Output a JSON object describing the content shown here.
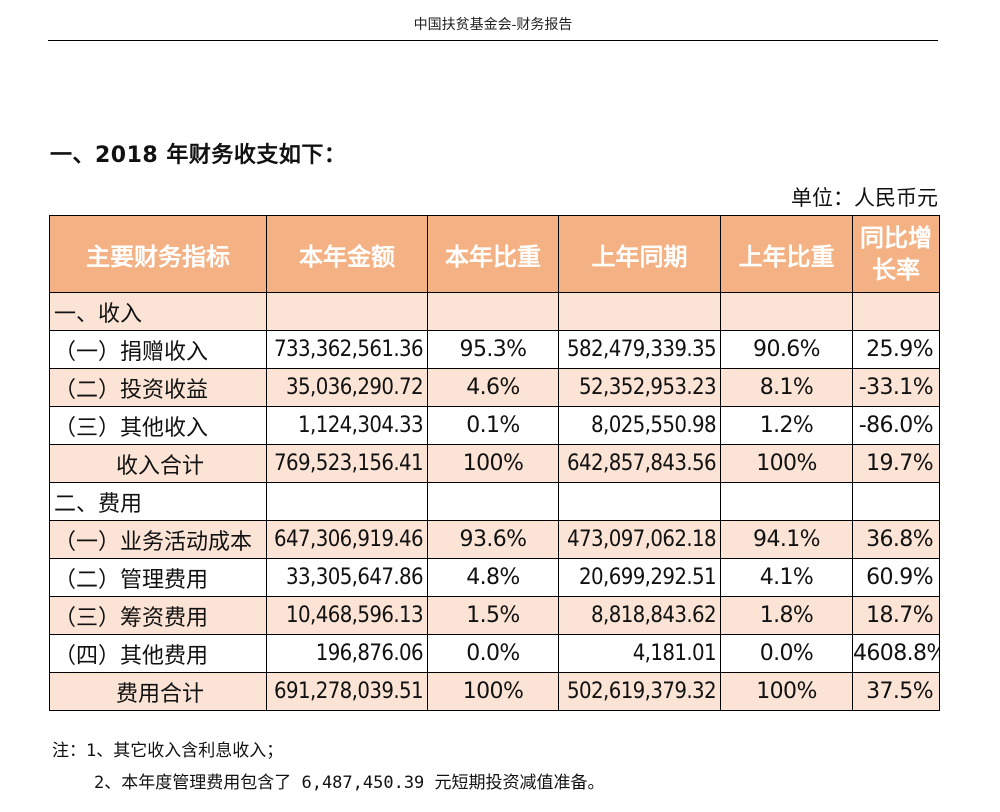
{
  "header": {
    "title": "中国扶贫基金会-财务报告"
  },
  "section": {
    "title": "一、2018 年财务收支如下：",
    "unit": "单位：人民币元"
  },
  "table": {
    "columns": [
      "主要财务指标",
      "本年金额",
      "本年比重",
      "上年同期",
      "上年比重",
      "同比增长率"
    ],
    "rows": [
      {
        "type": "section",
        "label": "一、收入",
        "values": [
          "",
          "",
          "",
          "",
          ""
        ]
      },
      {
        "type": "item",
        "label": "（一）捐赠收入",
        "values": [
          "733,362,561.36",
          "95.3%",
          "582,479,339.35",
          "90.6%",
          "25.9%"
        ]
      },
      {
        "type": "item",
        "label": "（二）投资收益",
        "values": [
          "35,036,290.72",
          "4.6%",
          "52,352,953.23",
          "8.1%",
          "-33.1%"
        ]
      },
      {
        "type": "item",
        "label": "（三）其他收入",
        "values": [
          "1,124,304.33",
          "0.1%",
          "8,025,550.98",
          "1.2%",
          "-86.0%"
        ]
      },
      {
        "type": "total",
        "label": "收入合计",
        "values": [
          "769,523,156.41",
          "100%",
          "642,857,843.56",
          "100%",
          "19.7%"
        ]
      },
      {
        "type": "section",
        "label": "二、费用",
        "values": [
          "",
          "",
          "",
          "",
          ""
        ]
      },
      {
        "type": "item",
        "label": "（一）业务活动成本",
        "values": [
          "647,306,919.46",
          "93.6%",
          "473,097,062.18",
          "94.1%",
          "36.8%"
        ]
      },
      {
        "type": "item",
        "label": "（二）管理费用",
        "values": [
          "33,305,647.86",
          "4.8%",
          "20,699,292.51",
          "4.1%",
          "60.9%"
        ]
      },
      {
        "type": "item",
        "label": "（三）筹资费用",
        "values": [
          "10,468,596.13",
          "1.5%",
          "8,818,843.62",
          "1.8%",
          "18.7%"
        ]
      },
      {
        "type": "item",
        "label": "（四）其他费用",
        "values": [
          "196,876.06",
          "0.0%",
          "4,181.01",
          "0.0%",
          "4608.8%"
        ]
      },
      {
        "type": "total",
        "label": "费用合计",
        "values": [
          "691,278,039.51",
          "100%",
          "502,619,379.32",
          "100%",
          "37.5%"
        ]
      }
    ]
  },
  "notes": {
    "line1": "注：1、其它收入含利息收入；",
    "line2": "2、本年度管理费用包含了 6,487,450.39 元短期投资减值准备。"
  },
  "colors": {
    "header_fill": "#f4b183",
    "row_shade": "#fbe4d5",
    "header_text": "#ffffff",
    "border": "#000000"
  }
}
